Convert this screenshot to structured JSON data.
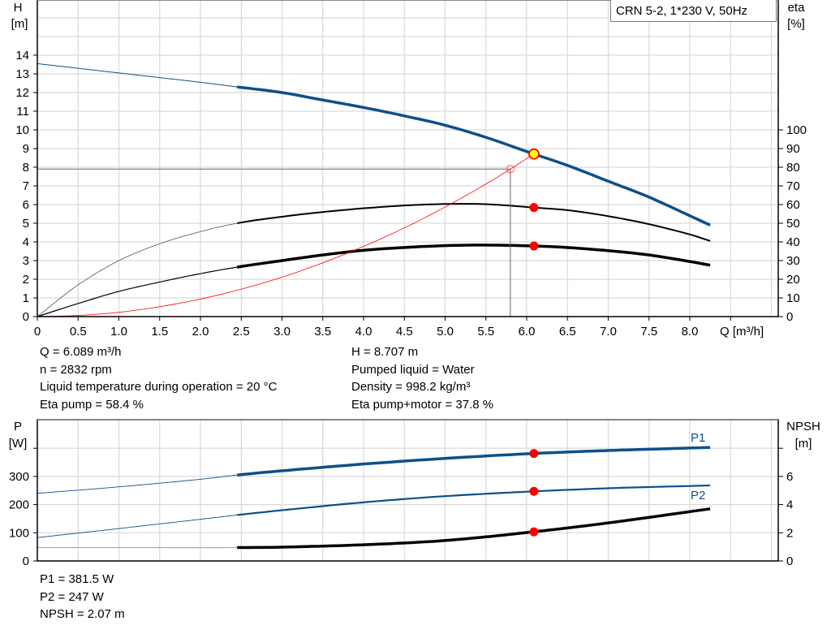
{
  "chart_data": [
    {
      "type": "line",
      "title": "CRN 5-2, 1*230 V, 50Hz",
      "xlabel": "Q [m³/h]",
      "ylabel": "H\n[m]",
      "ylabel_top": "H",
      "ylabel_unit": "[m]",
      "y2label_top": "eta",
      "y2label_unit": "[%]",
      "xlim": [
        0,
        9
      ],
      "ylim": [
        0,
        16
      ],
      "y2lim": [
        0,
        160
      ],
      "xticks": [
        "0",
        "0.5",
        "1.0",
        "1.5",
        "2.0",
        "2.5",
        "3.0",
        "3.5",
        "4.0",
        "4.5",
        "5.0",
        "5.5",
        "6.0",
        "6.5",
        "7.0",
        "7.5",
        "8.0"
      ],
      "yticks": [
        "0",
        "1",
        "2",
        "3",
        "4",
        "5",
        "6",
        "7",
        "8",
        "9",
        "10",
        "11",
        "12",
        "13",
        "14"
      ],
      "y2ticks": [
        "0",
        "10",
        "20",
        "30",
        "40",
        "50",
        "60",
        "70",
        "80",
        "90",
        "100"
      ],
      "grid": true,
      "operating_range_start_q": 2.45,
      "series": [
        {
          "key": "H",
          "axis": "left",
          "color": "#0d4f8b",
          "points": [
            [
              0,
              13.55
            ],
            [
              0.5,
              13.3
            ],
            [
              1,
              13.05
            ],
            [
              1.5,
              12.8
            ],
            [
              2,
              12.55
            ],
            [
              2.45,
              12.3
            ],
            [
              3,
              12.0
            ],
            [
              3.5,
              11.6
            ],
            [
              4,
              11.2
            ],
            [
              4.5,
              10.75
            ],
            [
              5,
              10.25
            ],
            [
              5.5,
              9.6
            ],
            [
              6.089,
              8.707
            ],
            [
              6.5,
              8.1
            ],
            [
              7,
              7.25
            ],
            [
              7.5,
              6.4
            ],
            [
              8,
              5.4
            ],
            [
              8.25,
              4.9
            ]
          ]
        },
        {
          "key": "eta_pump",
          "axis": "right",
          "color": "#000000",
          "points": [
            [
              0,
              0
            ],
            [
              0.5,
              17
            ],
            [
              1,
              30
            ],
            [
              1.5,
              39
            ],
            [
              2,
              45.5
            ],
            [
              2.45,
              50
            ],
            [
              3,
              53.5
            ],
            [
              3.5,
              56
            ],
            [
              4,
              58
            ],
            [
              4.5,
              59.5
            ],
            [
              5,
              60.3
            ],
            [
              5.5,
              60.2
            ],
            [
              6.089,
              58.4
            ],
            [
              6.5,
              57
            ],
            [
              7,
              53.8
            ],
            [
              7.5,
              49.5
            ],
            [
              8,
              44
            ],
            [
              8.25,
              40.5
            ]
          ]
        },
        {
          "key": "eta_pump_motor",
          "axis": "right",
          "color": "#000000",
          "points": [
            [
              0,
              0
            ],
            [
              0.5,
              7
            ],
            [
              1,
              13.5
            ],
            [
              1.5,
              18.5
            ],
            [
              2,
              23
            ],
            [
              2.45,
              26.5
            ],
            [
              3,
              30
            ],
            [
              3.5,
              33
            ],
            [
              4,
              35.5
            ],
            [
              4.5,
              37
            ],
            [
              5,
              38
            ],
            [
              5.5,
              38.3
            ],
            [
              6.089,
              37.8
            ],
            [
              6.5,
              37
            ],
            [
              7,
              35.3
            ],
            [
              7.5,
              33
            ],
            [
              8,
              29.5
            ],
            [
              8.25,
              27.5
            ]
          ]
        },
        {
          "key": "system_curve",
          "axis": "left",
          "color": "#ff0000",
          "points": [
            [
              0,
              0
            ],
            [
              0.5,
              0.06
            ],
            [
              1,
              0.23
            ],
            [
              1.5,
              0.53
            ],
            [
              2,
              0.94
            ],
            [
              2.5,
              1.47
            ],
            [
              3,
              2.11
            ],
            [
              3.5,
              2.88
            ],
            [
              4,
              3.76
            ],
            [
              4.5,
              4.75
            ],
            [
              5,
              5.87
            ],
            [
              5.5,
              7.1
            ],
            [
              5.8,
              7.9
            ],
            [
              6.089,
              8.707
            ]
          ]
        }
      ],
      "duty_point": {
        "q": 5.8,
        "h": 7.9
      },
      "operating_point": {
        "q": 6.089,
        "h": 8.707,
        "eta_pump": 58.4,
        "eta_pump_motor": 37.8
      }
    },
    {
      "type": "line",
      "ylabel_top": "P",
      "ylabel_unit": "[W]",
      "y2label_top": "NPSH",
      "y2label_unit": "[m]",
      "xlim": [
        0,
        9
      ],
      "ylim": [
        0,
        500
      ],
      "y2lim": [
        0,
        10
      ],
      "yticks": [
        "0",
        "100",
        "200",
        "300"
      ],
      "y2ticks": [
        "0",
        "2",
        "4",
        "6"
      ],
      "grid": true,
      "operating_range_start_q": 2.45,
      "series": [
        {
          "key": "P1",
          "name": "P1",
          "axis": "left",
          "color": "#0d4f8b",
          "points": [
            [
              0,
              240
            ],
            [
              1,
              263
            ],
            [
              2,
              290
            ],
            [
              2.45,
              305
            ],
            [
              3,
              320
            ],
            [
              4,
              344
            ],
            [
              5,
              364
            ],
            [
              6.089,
              381.5
            ],
            [
              7,
              392
            ],
            [
              8.25,
              403
            ]
          ]
        },
        {
          "key": "P2",
          "name": "P2",
          "axis": "left",
          "color": "#0d4f8b",
          "points": [
            [
              0,
              83
            ],
            [
              1,
              115
            ],
            [
              2,
              148
            ],
            [
              2.45,
              163
            ],
            [
              3,
              180
            ],
            [
              4,
              208
            ],
            [
              5,
              230
            ],
            [
              6.089,
              247
            ],
            [
              7,
              258
            ],
            [
              8.25,
              268
            ]
          ]
        },
        {
          "key": "NPSH",
          "axis": "right",
          "color": "#000000",
          "points": [
            [
              0,
              0.95
            ],
            [
              1,
              0.95
            ],
            [
              2.45,
              0.95
            ],
            [
              3,
              0.98
            ],
            [
              4,
              1.15
            ],
            [
              5,
              1.45
            ],
            [
              6.089,
              2.07
            ],
            [
              7,
              2.7
            ],
            [
              8.25,
              3.7
            ]
          ]
        }
      ],
      "operating_point": {
        "q": 6.089,
        "P1": 381.5,
        "P2": 247,
        "NPSH": 2.07
      }
    }
  ],
  "info_top_left": [
    "Q = 6.089 m³/h",
    "n = 2832 rpm",
    "Liquid temperature during operation = 20 °C",
    "Eta pump = 58.4 %"
  ],
  "info_top_right": [
    "H = 8.707 m",
    "Pumped liquid = Water",
    "Density = 998.2 kg/m³",
    "Eta pump+motor = 37.8 %"
  ],
  "info_bottom": [
    "P1 = 381.5 W",
    "P2 = 247 W",
    "NPSH = 2.07 m"
  ],
  "colors": {
    "blue": "#0d4f8b",
    "marker": "#ff0000",
    "operating_marker_fill": "#ffff00",
    "grid": "#d9d9d9"
  }
}
